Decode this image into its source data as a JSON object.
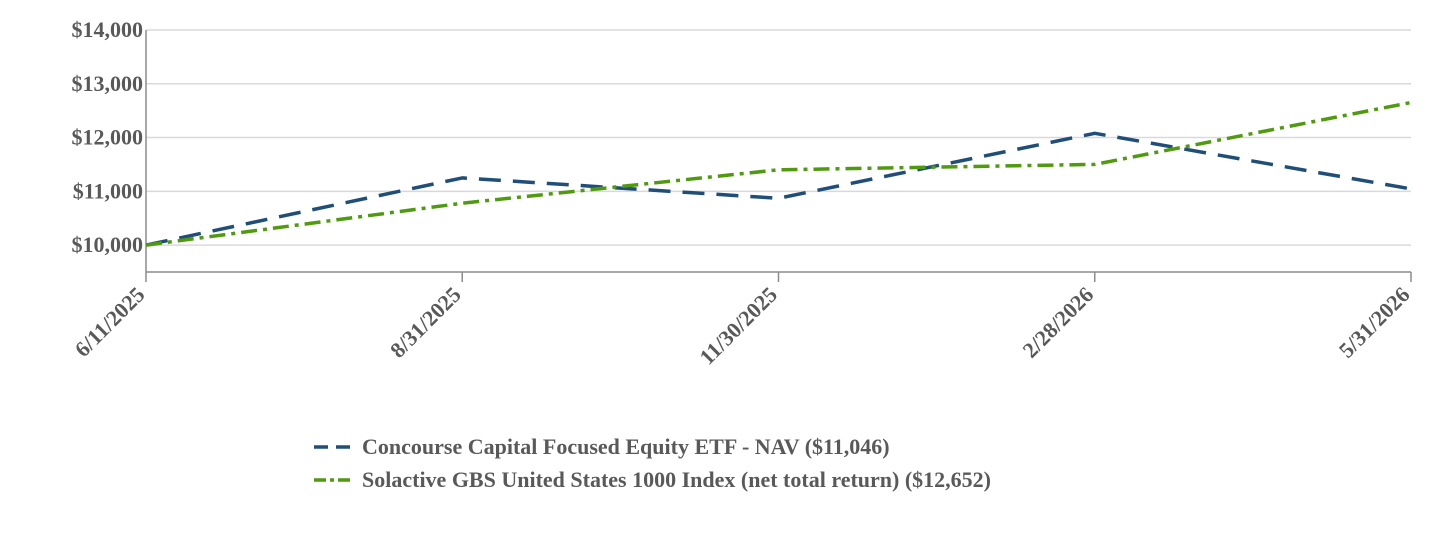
{
  "chart_data": {
    "type": "line",
    "title": "",
    "xlabel": "",
    "ylabel": "",
    "x": [
      "6/11/2025",
      "8/31/2025",
      "11/30/2025",
      "2/28/2026",
      "5/31/2026"
    ],
    "ylim": [
      9500,
      14000
    ],
    "yticks": [
      10000,
      11000,
      12000,
      13000,
      14000
    ],
    "ytick_labels": [
      "$10,000",
      "$11,000",
      "$12,000",
      "$13,000",
      "$14,000"
    ],
    "grid": true,
    "legend_position": "bottom-center",
    "series": [
      {
        "name": "Concourse Capital Focused Equity ETF  - NAV ($11,046)",
        "values": [
          10000,
          11250,
          10870,
          12080,
          11046
        ],
        "color": "#1f4e79",
        "line_style": "dashed"
      },
      {
        "name": "Solactive GBS United States 1000 Index (net total return) ($12,652)",
        "values": [
          10000,
          10780,
          11400,
          11500,
          12652
        ],
        "color": "#4f9a0f",
        "line_style": "dash-dot"
      }
    ]
  }
}
